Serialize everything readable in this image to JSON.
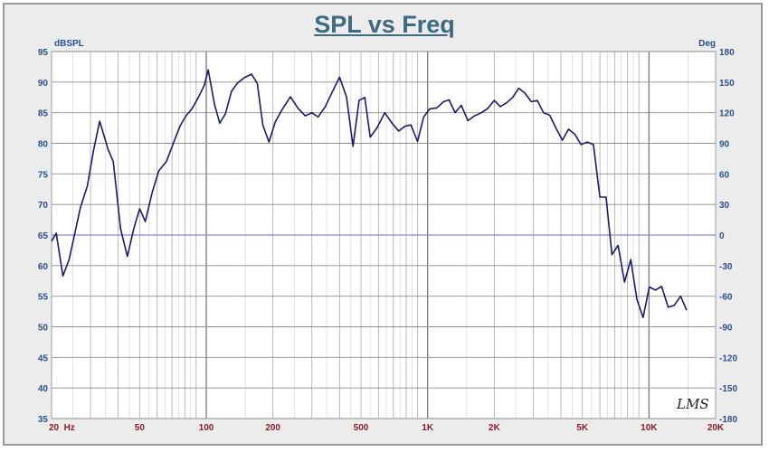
{
  "chart_data": {
    "type": "line",
    "title": "SPL vs Freq",
    "ylabel_left": "dBSPL",
    "ylabel_right": "Deg",
    "x_scale": "log",
    "xlim": [
      20,
      20000
    ],
    "ylim": [
      35,
      95
    ],
    "ylim_right": [
      -180,
      180
    ],
    "grid": true,
    "y_ticks": [
      35,
      40,
      45,
      50,
      55,
      60,
      65,
      70,
      75,
      80,
      85,
      90,
      95
    ],
    "y_right_ticks": [
      -180,
      -150,
      -120,
      -90,
      -60,
      -30,
      0,
      30,
      60,
      90,
      120,
      150,
      180
    ],
    "x_tick_labels": [
      {
        "value": 20,
        "label": "20  Hz"
      },
      {
        "value": 50,
        "label": "50"
      },
      {
        "value": 100,
        "label": "100"
      },
      {
        "value": 200,
        "label": "200"
      },
      {
        "value": 500,
        "label": "500"
      },
      {
        "value": 1000,
        "label": "1K"
      },
      {
        "value": 2000,
        "label": "2K"
      },
      {
        "value": 5000,
        "label": "5K"
      },
      {
        "value": 10000,
        "label": "10K"
      },
      {
        "value": 20000,
        "label": "20K"
      }
    ],
    "series": [
      {
        "color": "#1a1a6e",
        "points": [
          [
            20,
            64
          ],
          [
            21,
            65.3
          ],
          [
            22.5,
            58.3
          ],
          [
            24,
            61
          ],
          [
            27,
            69.5
          ],
          [
            29,
            73
          ],
          [
            31,
            79
          ],
          [
            33,
            83.6
          ],
          [
            36,
            79
          ],
          [
            38,
            77
          ],
          [
            41,
            66
          ],
          [
            44,
            61.5
          ],
          [
            47,
            66
          ],
          [
            50,
            69.3
          ],
          [
            53,
            67.2
          ],
          [
            57,
            72
          ],
          [
            61,
            75.5
          ],
          [
            66,
            77
          ],
          [
            71,
            80
          ],
          [
            76,
            82.8
          ],
          [
            81,
            84.5
          ],
          [
            86,
            85.6
          ],
          [
            92,
            87.5
          ],
          [
            98,
            89.5
          ],
          [
            102,
            92
          ],
          [
            109,
            86.3
          ],
          [
            115,
            83.3
          ],
          [
            122,
            84.8
          ],
          [
            130,
            88.5
          ],
          [
            138,
            89.8
          ],
          [
            148,
            90.7
          ],
          [
            160,
            91.3
          ],
          [
            170,
            89.8
          ],
          [
            180,
            83
          ],
          [
            192,
            80.2
          ],
          [
            205,
            83.5
          ],
          [
            220,
            85.5
          ],
          [
            240,
            87.6
          ],
          [
            260,
            85.7
          ],
          [
            280,
            84.5
          ],
          [
            300,
            85
          ],
          [
            320,
            84.3
          ],
          [
            345,
            86
          ],
          [
            370,
            88.3
          ],
          [
            400,
            90.8
          ],
          [
            430,
            87.6
          ],
          [
            460,
            79.5
          ],
          [
            490,
            87
          ],
          [
            520,
            87.5
          ],
          [
            550,
            81
          ],
          [
            590,
            82.5
          ],
          [
            640,
            85
          ],
          [
            690,
            83.3
          ],
          [
            740,
            82
          ],
          [
            790,
            82.8
          ],
          [
            840,
            83
          ],
          [
            900,
            80.3
          ],
          [
            960,
            84.3
          ],
          [
            1020,
            85.6
          ],
          [
            1100,
            85.8
          ],
          [
            1180,
            86.8
          ],
          [
            1250,
            87.1
          ],
          [
            1330,
            85
          ],
          [
            1420,
            86.2
          ],
          [
            1520,
            83.7
          ],
          [
            1630,
            84.5
          ],
          [
            1750,
            85
          ],
          [
            1870,
            85.7
          ],
          [
            2000,
            87
          ],
          [
            2130,
            86
          ],
          [
            2270,
            86.6
          ],
          [
            2420,
            87.5
          ],
          [
            2580,
            89
          ],
          [
            2750,
            88.2
          ],
          [
            2940,
            86.8
          ],
          [
            3130,
            87
          ],
          [
            3340,
            85
          ],
          [
            3560,
            84.6
          ],
          [
            3800,
            82.5
          ],
          [
            4060,
            80.5
          ],
          [
            4330,
            82.3
          ],
          [
            4620,
            81.5
          ],
          [
            4930,
            79.8
          ],
          [
            5260,
            80.2
          ],
          [
            5610,
            79.8
          ],
          [
            6000,
            71.2
          ],
          [
            6400,
            71.2
          ],
          [
            6800,
            61.8
          ],
          [
            7250,
            63.3
          ],
          [
            7750,
            57.3
          ],
          [
            8270,
            61
          ],
          [
            8820,
            54.5
          ],
          [
            9400,
            51.5
          ],
          [
            10030,
            56.5
          ],
          [
            10700,
            56
          ],
          [
            11400,
            56.6
          ],
          [
            12200,
            53.2
          ],
          [
            13000,
            53.5
          ],
          [
            13900,
            55
          ],
          [
            14800,
            52.7
          ]
        ]
      }
    ],
    "reference_line": 0
  },
  "logo_text": "LMS"
}
